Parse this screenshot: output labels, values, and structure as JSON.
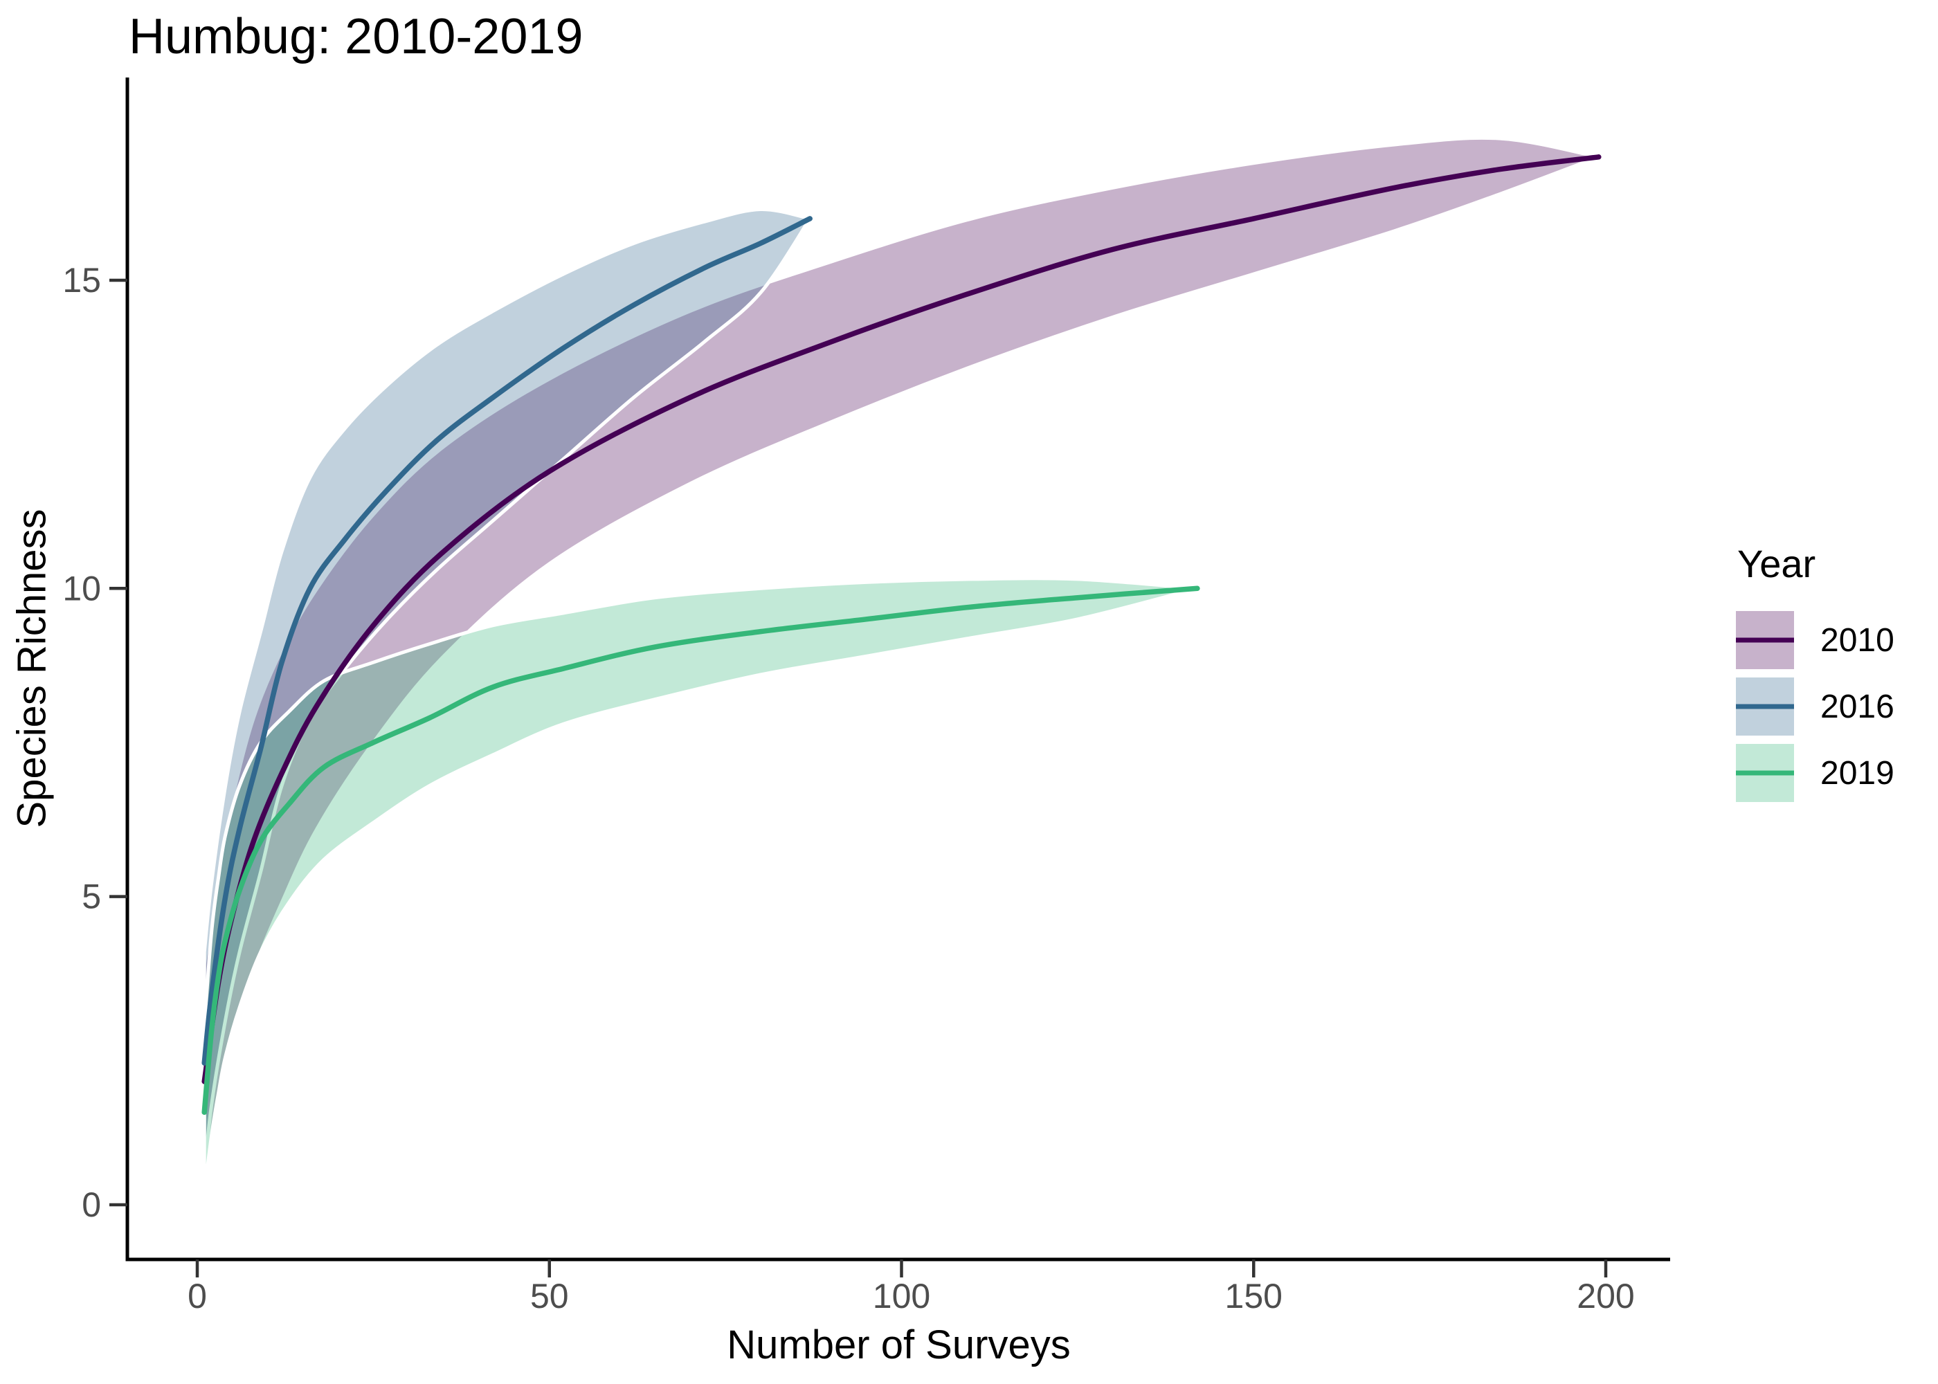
{
  "chart_data": {
    "type": "line",
    "title": "Humbug: 2010-2019",
    "xlabel": "Number of Surveys",
    "ylabel": "Species Richness",
    "legend_title": "Year",
    "legend_position": "right",
    "grid": false,
    "xlim": [
      0,
      210
    ],
    "ylim": [
      -0.9,
      18.3
    ],
    "x_ticks": [
      0,
      50,
      100,
      150,
      200
    ],
    "y_ticks": [
      0,
      5,
      10,
      15
    ],
    "axis_color": "#000000",
    "tick_mark_color": "#333333",
    "tick_label_color": "#4d4d4d",
    "ribbon_edge_color": "#ffffff",
    "series": [
      {
        "name": "2010",
        "line_color": "#440154",
        "fill_rgba": "rgba(68,1,84,0.3)",
        "x": [
          1,
          3,
          5,
          8,
          12,
          17,
          25,
          35,
          50,
          70,
          90,
          110,
          130,
          150,
          170,
          185,
          199
        ],
        "y": [
          2.0,
          3.6,
          4.7,
          5.9,
          7.0,
          8.1,
          9.4,
          10.6,
          11.9,
          13.1,
          14.0,
          14.8,
          15.5,
          16.0,
          16.5,
          16.8,
          17.0
        ],
        "ci_lower": [
          0.4,
          1.8,
          2.7,
          3.8,
          4.9,
          6.1,
          7.5,
          8.9,
          10.4,
          11.7,
          12.7,
          13.6,
          14.4,
          15.1,
          15.8,
          16.4,
          17.0
        ],
        "ci_upper": [
          3.9,
          5.4,
          6.6,
          7.9,
          9.0,
          10.0,
          11.2,
          12.3,
          13.4,
          14.5,
          15.3,
          16.0,
          16.5,
          16.9,
          17.2,
          17.3,
          17.0
        ]
      },
      {
        "name": "2016",
        "line_color": "#31688e",
        "fill_rgba": "rgba(49,104,142,0.3)",
        "x": [
          1,
          2,
          4,
          6,
          9,
          12,
          16,
          21,
          27,
          34,
          42,
          52,
          62,
          72,
          80,
          87
        ],
        "y": [
          2.3,
          3.4,
          5.0,
          6.1,
          7.4,
          8.8,
          10.0,
          10.8,
          11.6,
          12.4,
          13.1,
          13.9,
          14.6,
          15.2,
          15.6,
          16.0
        ],
        "ci_lower": [
          0.5,
          1.6,
          3.0,
          4.1,
          5.4,
          6.8,
          7.9,
          8.7,
          9.5,
          10.3,
          11.1,
          12.1,
          13.1,
          14.0,
          14.8,
          16.0
        ],
        "ci_upper": [
          4.1,
          5.2,
          6.8,
          8.0,
          9.3,
          10.6,
          11.8,
          12.6,
          13.3,
          13.95,
          14.5,
          15.1,
          15.6,
          15.95,
          16.15,
          16.0
        ]
      },
      {
        "name": "2019",
        "line_color": "#35b779",
        "fill_rgba": "rgba(53,183,121,0.3)",
        "x": [
          1,
          2,
          3,
          4,
          6,
          9,
          13,
          18,
          25,
          33,
          42,
          52,
          65,
          80,
          95,
          110,
          125,
          142
        ],
        "y": [
          1.5,
          2.8,
          3.7,
          4.3,
          5.1,
          5.9,
          6.5,
          7.1,
          7.5,
          7.9,
          8.4,
          8.7,
          9.05,
          9.3,
          9.5,
          9.7,
          9.85,
          10.0
        ],
        "ci_lower": [
          0.2,
          1.1,
          1.8,
          2.4,
          3.2,
          4.1,
          4.9,
          5.6,
          6.2,
          6.8,
          7.3,
          7.8,
          8.2,
          8.6,
          8.9,
          9.2,
          9.5,
          10.0
        ],
        "ci_upper": [
          2.9,
          4.4,
          5.3,
          6.0,
          6.8,
          7.5,
          8.0,
          8.5,
          8.8,
          9.1,
          9.4,
          9.6,
          9.85,
          10.0,
          10.1,
          10.15,
          10.15,
          10.0
        ]
      }
    ]
  }
}
